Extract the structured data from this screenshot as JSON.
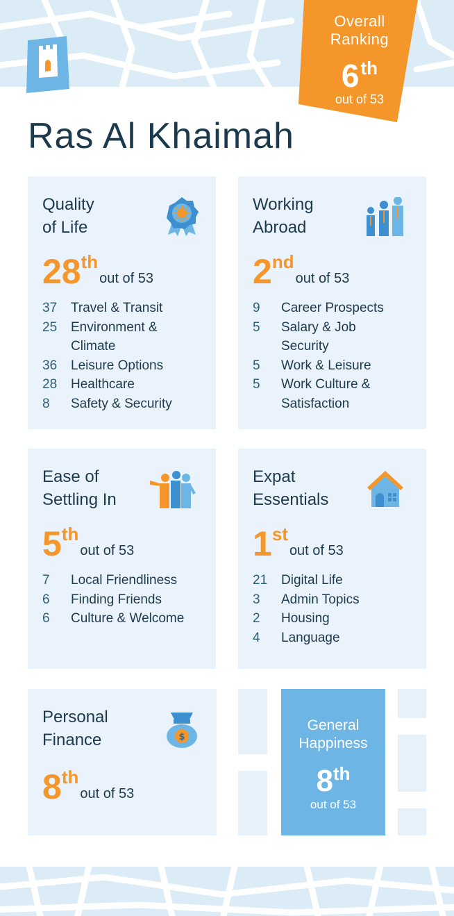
{
  "city": "Ras Al Khaimah",
  "overall": {
    "label": "Overall Ranking",
    "rank": "6",
    "suffix": "th",
    "out_of": "out of 53"
  },
  "cards": [
    {
      "id": "quality-of-life",
      "title": "Quality\nof Life",
      "icon": "award-badge-icon",
      "rank": "28",
      "suffix": "th",
      "out_of": "out of 53",
      "items": [
        {
          "n": "37",
          "label": "Travel & Transit"
        },
        {
          "n": "25",
          "label": "Environment & Climate"
        },
        {
          "n": "36",
          "label": "Leisure Options"
        },
        {
          "n": "28",
          "label": "Healthcare"
        },
        {
          "n": "8",
          "label": "Safety & Security"
        }
      ]
    },
    {
      "id": "working-abroad",
      "title": "Working\nAbroad",
      "icon": "business-people-icon",
      "rank": "2",
      "suffix": "nd",
      "out_of": "out of 53",
      "items": [
        {
          "n": "9",
          "label": "Career Prospects"
        },
        {
          "n": "5",
          "label": "Salary & Job Security"
        },
        {
          "n": "5",
          "label": "Work & Leisure"
        },
        {
          "n": "5",
          "label": "Work Culture & Satisfaction"
        }
      ]
    },
    {
      "id": "ease-of-settling-in",
      "title": "Ease of\nSettling In",
      "icon": "friends-group-icon",
      "rank": "5",
      "suffix": "th",
      "out_of": "out of 53",
      "items": [
        {
          "n": "7",
          "label": "Local Friendliness"
        },
        {
          "n": "6",
          "label": "Finding Friends"
        },
        {
          "n": "6",
          "label": "Culture & Welcome"
        }
      ]
    },
    {
      "id": "expat-essentials",
      "title": "Expat\nEssentials",
      "icon": "house-icon",
      "rank": "1",
      "suffix": "st",
      "out_of": "out of 53",
      "items": [
        {
          "n": "21",
          "label": "Digital Life"
        },
        {
          "n": "3",
          "label": "Admin Topics"
        },
        {
          "n": "2",
          "label": "Housing"
        },
        {
          "n": "4",
          "label": "Language"
        }
      ]
    },
    {
      "id": "personal-finance",
      "title": "Personal\nFinance",
      "icon": "money-bag-icon",
      "rank": "8",
      "suffix": "th",
      "out_of": "out of 53",
      "items": []
    }
  ],
  "happiness": {
    "label": "General\nHappiness",
    "rank": "8",
    "suffix": "th",
    "out_of": "out of 53"
  },
  "colors": {
    "orange": "#f4962a",
    "blue": "#6cb5e4",
    "card_bg": "#eaf3fb",
    "text": "#1d3a4d"
  }
}
